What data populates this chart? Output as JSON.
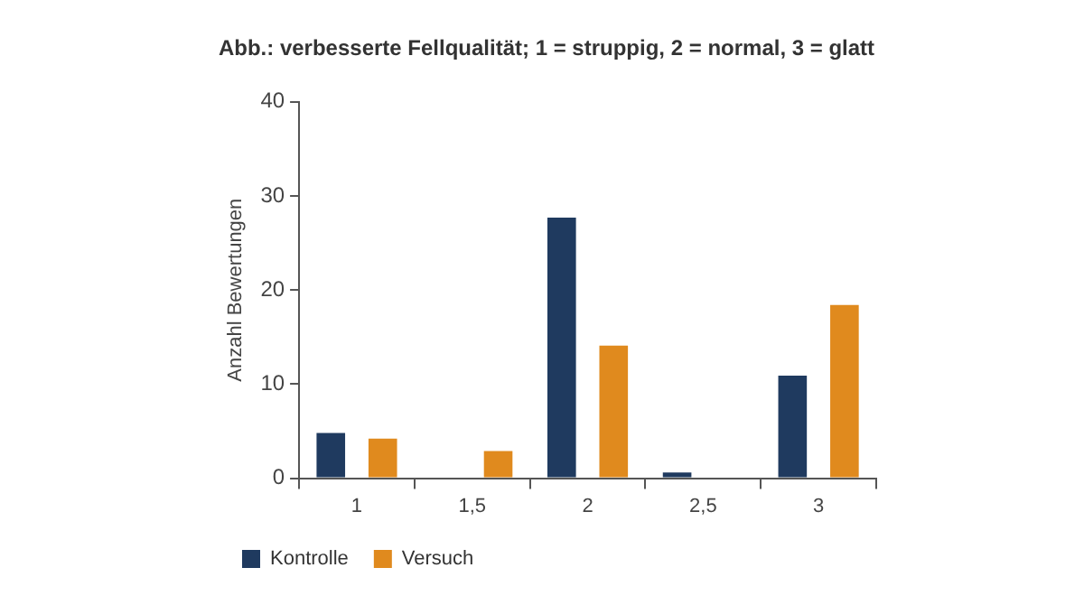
{
  "chart_data": {
    "type": "bar",
    "title": "Abb.: verbesserte Fellqualität; 1 = struppig, 2 = normal, 3 = glatt",
    "ylabel": "Anzahl Bewertungen",
    "categories": [
      "1",
      "1,5",
      "2",
      "2,5",
      "3"
    ],
    "series": [
      {
        "name": "Kontrolle",
        "color": "#1f3a5f",
        "values": [
          4.8,
          0,
          27.7,
          0.6,
          10.9
        ]
      },
      {
        "name": "Versuch",
        "color": "#e08a1e",
        "values": [
          4.2,
          2.9,
          14.1,
          0,
          18.4
        ]
      }
    ],
    "ylim": [
      0,
      40
    ],
    "yticks": [
      0,
      10,
      20,
      30,
      40
    ],
    "grid": false,
    "legend": "bottom left"
  }
}
